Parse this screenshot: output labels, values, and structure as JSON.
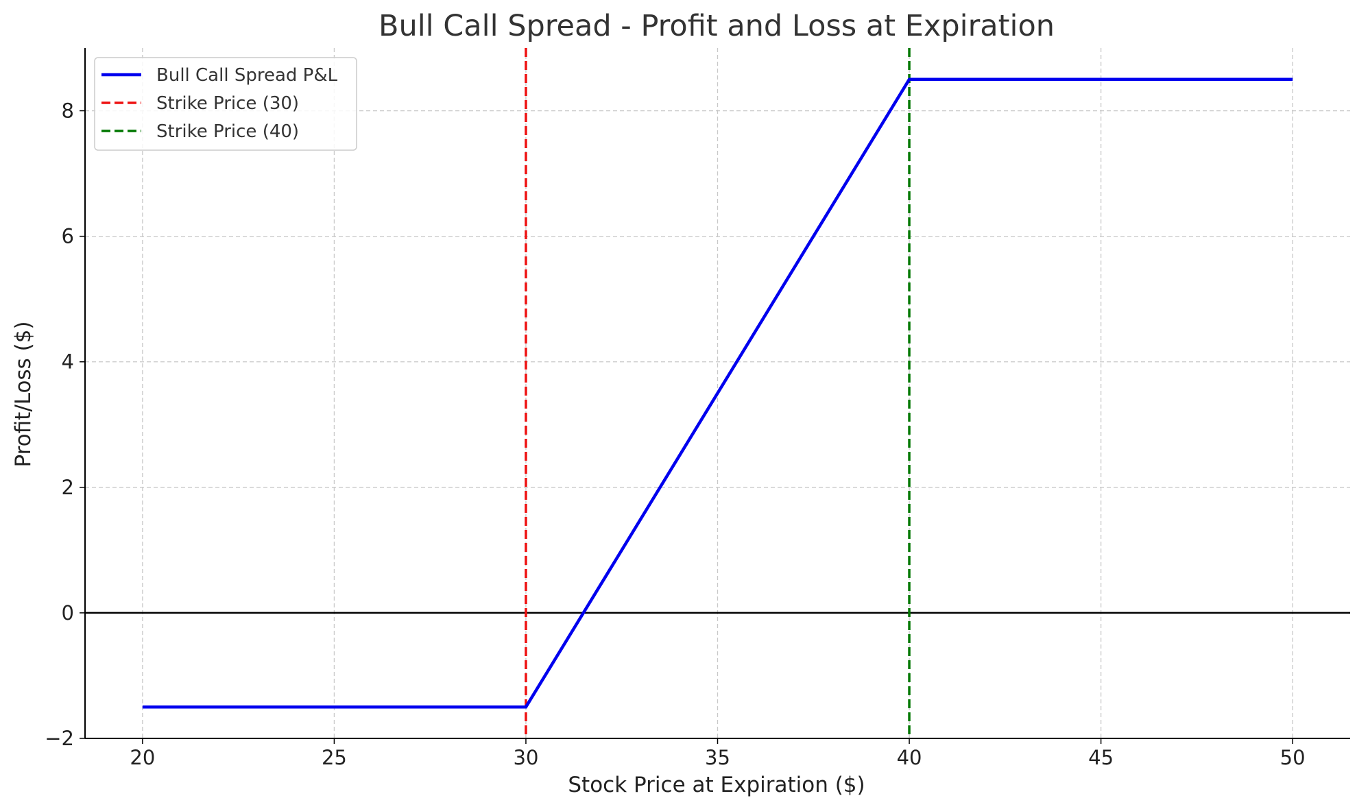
{
  "chart_data": {
    "type": "line",
    "title": "Bull Call Spread - Profit and Loss at Expiration",
    "xlabel": "Stock Price at Expiration ($)",
    "ylabel": "Profit/Loss ($)",
    "xlim": [
      18.5,
      51.5
    ],
    "ylim": [
      -2,
      9
    ],
    "xticks": [
      20,
      25,
      30,
      35,
      40,
      45,
      50
    ],
    "yticks": [
      -2,
      0,
      2,
      4,
      6,
      8
    ],
    "ytick_labels": [
      "−2",
      "0",
      "2",
      "4",
      "6",
      "8"
    ],
    "grid": true,
    "legend_position": "top-left",
    "series": [
      {
        "name": "Bull Call Spread P&L",
        "style": "solid",
        "color": "#0000ee",
        "x": [
          20,
          30,
          40,
          50
        ],
        "y": [
          -1.5,
          -1.5,
          8.5,
          8.5
        ]
      }
    ],
    "vlines": [
      {
        "name": "Strike Price (30)",
        "x": 30,
        "color": "#ee1111",
        "style": "dashed"
      },
      {
        "name": "Strike Price (40)",
        "x": 40,
        "color": "#007700",
        "style": "dashed"
      }
    ],
    "hlines": [
      {
        "y": 0,
        "color": "#000000",
        "style": "solid"
      }
    ]
  }
}
